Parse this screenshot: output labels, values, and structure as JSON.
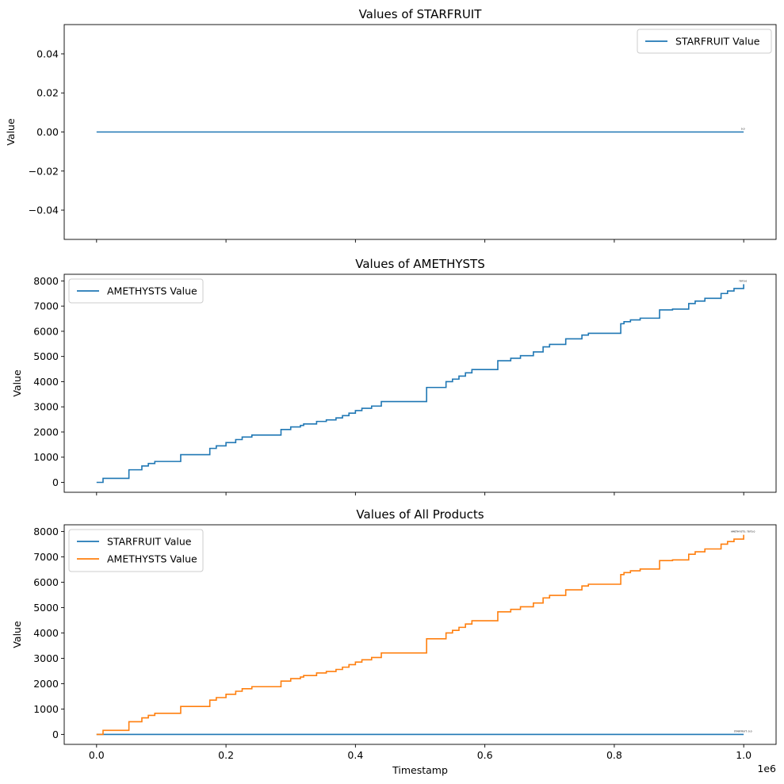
{
  "chart_data": [
    {
      "type": "line",
      "step": true,
      "title": "Values of STARFRUIT",
      "xlabel": "",
      "ylabel": "Value",
      "xlim": [
        -50000,
        1050000
      ],
      "ylim": [
        -0.055,
        0.055
      ],
      "xticks": [
        0,
        200000,
        400000,
        600000,
        800000,
        1000000
      ],
      "xtick_labels_visible": false,
      "yticks": [
        -0.04,
        -0.02,
        0.0,
        0.02,
        0.04
      ],
      "ytick_labels": [
        "−0.04",
        "−0.02",
        "0.00",
        "0.02",
        "0.04"
      ],
      "legend": "top-right",
      "grid": false,
      "series": [
        {
          "name": "STARFRUIT Value",
          "color": "#1f77b4",
          "x": [
            0,
            999900
          ],
          "y": [
            0,
            0
          ]
        }
      ],
      "annotations": [
        {
          "text": "0.0",
          "x": 999900,
          "y": 0
        }
      ]
    },
    {
      "type": "line",
      "step": true,
      "title": "Values of AMETHYSTS",
      "xlabel": "",
      "ylabel": "Value",
      "xlim": [
        -50000,
        1050000
      ],
      "ylim": [
        -393.5,
        8263.5
      ],
      "xticks": [
        0,
        200000,
        400000,
        600000,
        800000,
        1000000
      ],
      "xtick_labels_visible": false,
      "yticks": [
        0,
        1000,
        2000,
        3000,
        4000,
        5000,
        6000,
        7000,
        8000
      ],
      "ytick_labels": [
        "0",
        "1000",
        "2000",
        "3000",
        "4000",
        "5000",
        "6000",
        "7000",
        "8000"
      ],
      "legend": "top-left",
      "grid": false,
      "series": [
        {
          "name": "AMETHYSTS Value",
          "color": "#1f77b4",
          "x": [
            0,
            10000,
            50000,
            70000,
            80000,
            90000,
            130000,
            175000,
            185000,
            200000,
            215000,
            225000,
            240000,
            285000,
            300000,
            315000,
            320000,
            340000,
            355000,
            370000,
            380000,
            390000,
            400000,
            410000,
            425000,
            440000,
            510000,
            540000,
            550000,
            560000,
            570000,
            580000,
            620000,
            640000,
            655000,
            675000,
            690000,
            700000,
            725000,
            750000,
            760000,
            810000,
            815000,
            825000,
            840000,
            870000,
            890000,
            915000,
            925000,
            940000,
            965000,
            975000,
            985000,
            999900
          ],
          "y": [
            0,
            160,
            500,
            650,
            750,
            830,
            1100,
            1350,
            1450,
            1580,
            1700,
            1800,
            1880,
            2100,
            2200,
            2260,
            2320,
            2420,
            2480,
            2560,
            2650,
            2750,
            2850,
            2940,
            3030,
            3210,
            3770,
            4000,
            4100,
            4220,
            4350,
            4480,
            4830,
            4930,
            5030,
            5180,
            5380,
            5480,
            5700,
            5850,
            5920,
            6300,
            6380,
            6450,
            6520,
            6850,
            6880,
            7100,
            7200,
            7310,
            7500,
            7600,
            7700,
            7870
          ]
        }
      ],
      "annotations": [
        {
          "text": "7870.0",
          "x": 999900,
          "y": 7870
        }
      ]
    },
    {
      "type": "line",
      "step": true,
      "title": "Values of  All Products",
      "xlabel": "Timestamp",
      "ylabel": "Value",
      "x_offset_label": "1e6",
      "xlim": [
        -50000,
        1050000
      ],
      "ylim": [
        -393.5,
        8263.5
      ],
      "xticks": [
        0,
        200000,
        400000,
        600000,
        800000,
        1000000
      ],
      "xtick_labels": [
        "0.0",
        "0.2",
        "0.4",
        "0.6",
        "0.8",
        "1.0"
      ],
      "xtick_labels_visible": true,
      "yticks": [
        0,
        1000,
        2000,
        3000,
        4000,
        5000,
        6000,
        7000,
        8000
      ],
      "ytick_labels": [
        "0",
        "1000",
        "2000",
        "3000",
        "4000",
        "5000",
        "6000",
        "7000",
        "8000"
      ],
      "legend": "top-left",
      "grid": false,
      "series": [
        {
          "name": "STARFRUIT Value",
          "color": "#1f77b4",
          "x": [
            0,
            999900
          ],
          "y": [
            0,
            0
          ]
        },
        {
          "name": "AMETHYSTS Value",
          "color": "#ff7f0e",
          "x": [
            0,
            10000,
            50000,
            70000,
            80000,
            90000,
            130000,
            175000,
            185000,
            200000,
            215000,
            225000,
            240000,
            285000,
            300000,
            315000,
            320000,
            340000,
            355000,
            370000,
            380000,
            390000,
            400000,
            410000,
            425000,
            440000,
            510000,
            540000,
            550000,
            560000,
            570000,
            580000,
            620000,
            640000,
            655000,
            675000,
            690000,
            700000,
            725000,
            750000,
            760000,
            810000,
            815000,
            825000,
            840000,
            870000,
            890000,
            915000,
            925000,
            940000,
            965000,
            975000,
            985000,
            999900
          ],
          "y": [
            0,
            160,
            500,
            650,
            750,
            830,
            1100,
            1350,
            1450,
            1580,
            1700,
            1800,
            1880,
            2100,
            2200,
            2260,
            2320,
            2420,
            2480,
            2560,
            2650,
            2750,
            2850,
            2940,
            3030,
            3210,
            3770,
            4000,
            4100,
            4220,
            4350,
            4480,
            4830,
            4930,
            5030,
            5180,
            5380,
            5480,
            5700,
            5850,
            5920,
            6300,
            6380,
            6450,
            6520,
            6850,
            6880,
            7100,
            7200,
            7310,
            7500,
            7600,
            7700,
            7870
          ]
        }
      ],
      "annotations": [
        {
          "text": "AMETHYSTS: 7870.0",
          "x": 999900,
          "y": 7870
        },
        {
          "text": "STARFRUIT: 0.0",
          "x": 999900,
          "y": 0
        }
      ]
    }
  ]
}
